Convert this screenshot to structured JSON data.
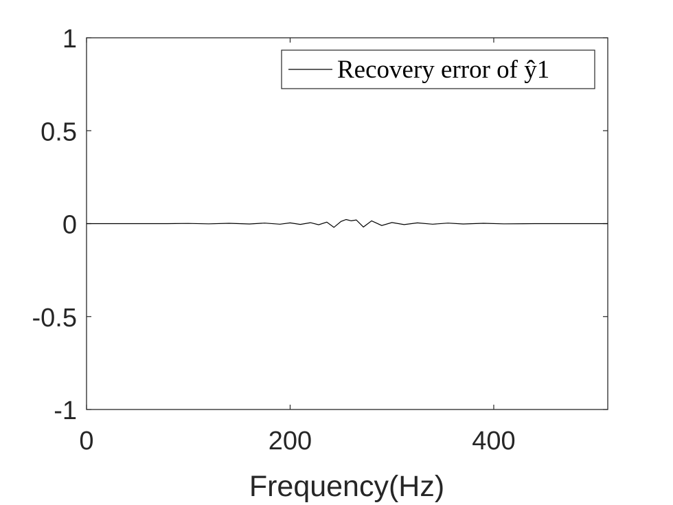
{
  "chart_data": {
    "type": "line",
    "title": "",
    "xlabel": "Frequency(Hz)",
    "ylabel": "",
    "xlim": [
      0,
      512
    ],
    "ylim": [
      -1,
      1
    ],
    "grid": false,
    "legend": {
      "location": "top-right"
    },
    "x_ticks": [
      "0",
      "200",
      "400"
    ],
    "y_ticks": [
      "1",
      "0.5",
      "0",
      "-0.5",
      "-1"
    ],
    "series": [
      {
        "name": "Recovery error of ŷ1",
        "color": "#000000",
        "x": [
          0,
          80,
          100,
          120,
          140,
          160,
          175,
          190,
          200,
          210,
          220,
          228,
          236,
          243,
          250,
          255,
          260,
          265,
          272,
          280,
          290,
          300,
          312,
          325,
          340,
          355,
          370,
          390,
          410,
          440,
          512
        ],
        "y": [
          0,
          0,
          0.001,
          -0.001,
          0.002,
          -0.002,
          0.003,
          -0.003,
          0.004,
          -0.004,
          0.005,
          -0.006,
          0.008,
          -0.02,
          0.012,
          0.022,
          0.015,
          0.02,
          -0.018,
          0.015,
          -0.01,
          0.006,
          -0.005,
          0.004,
          -0.003,
          0.003,
          -0.002,
          0.002,
          -0.001,
          0,
          0
        ]
      }
    ]
  }
}
